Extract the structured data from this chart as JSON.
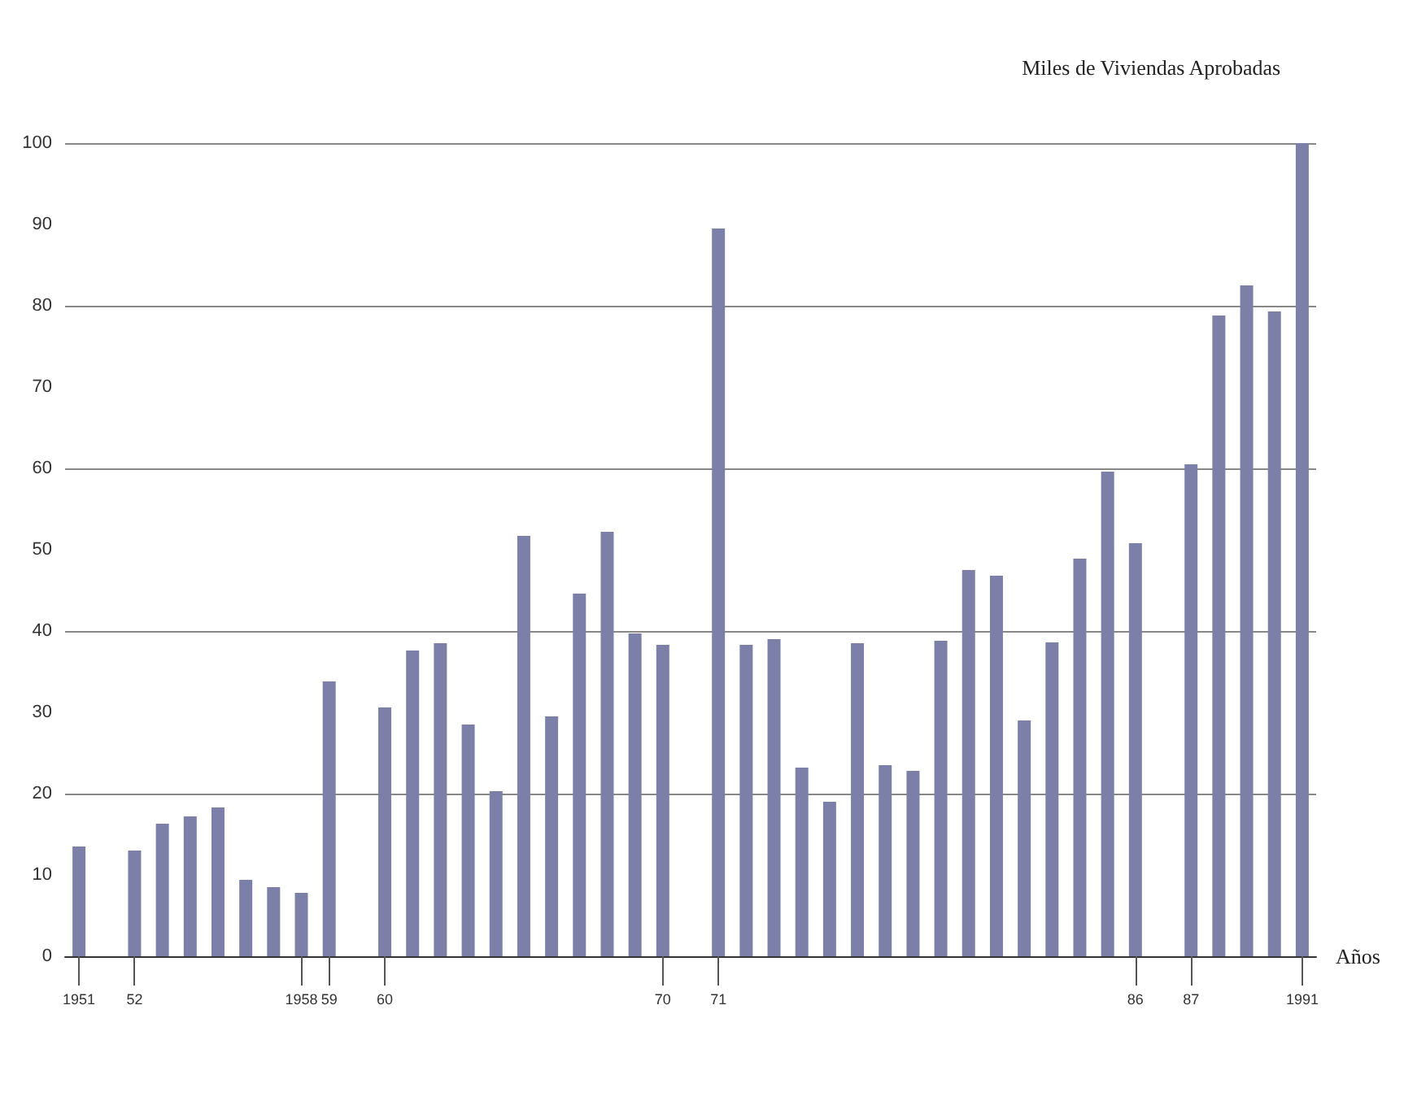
{
  "chart_data": {
    "type": "bar",
    "ylabel": "Miles de Viviendas Aprobadas",
    "xlabel": "Años",
    "categories": [
      "1951",
      null,
      "52",
      null,
      null,
      null,
      null,
      null,
      "1958",
      "59",
      null,
      "60",
      null,
      null,
      null,
      null,
      null,
      null,
      null,
      null,
      null,
      "70",
      null,
      "71",
      null,
      null,
      null,
      null,
      null,
      null,
      null,
      null,
      null,
      null,
      null,
      null,
      null,
      null,
      "86",
      null,
      "87",
      null,
      null,
      null,
      "1991"
    ],
    "values": [
      13.5,
      null,
      13,
      16.3,
      17.2,
      18.3,
      9.4,
      8.5,
      7.8,
      33.8,
      null,
      30.6,
      37.6,
      38.5,
      28.5,
      20.3,
      51.7,
      29.5,
      44.6,
      52.2,
      39.7,
      38.3,
      null,
      89.5,
      38.3,
      39,
      23.2,
      19,
      38.5,
      23.5,
      22.8,
      38.8,
      47.5,
      46.8,
      29,
      38.6,
      48.9,
      59.6,
      50.8,
      null,
      60.5,
      78.8,
      82.5,
      79.3,
      100
    ],
    "color": "#7c80a8",
    "ylim": [
      0,
      100
    ],
    "yticks": [
      0,
      10,
      20,
      30,
      40,
      50,
      60,
      70,
      80,
      90,
      100
    ],
    "grid": "y"
  }
}
